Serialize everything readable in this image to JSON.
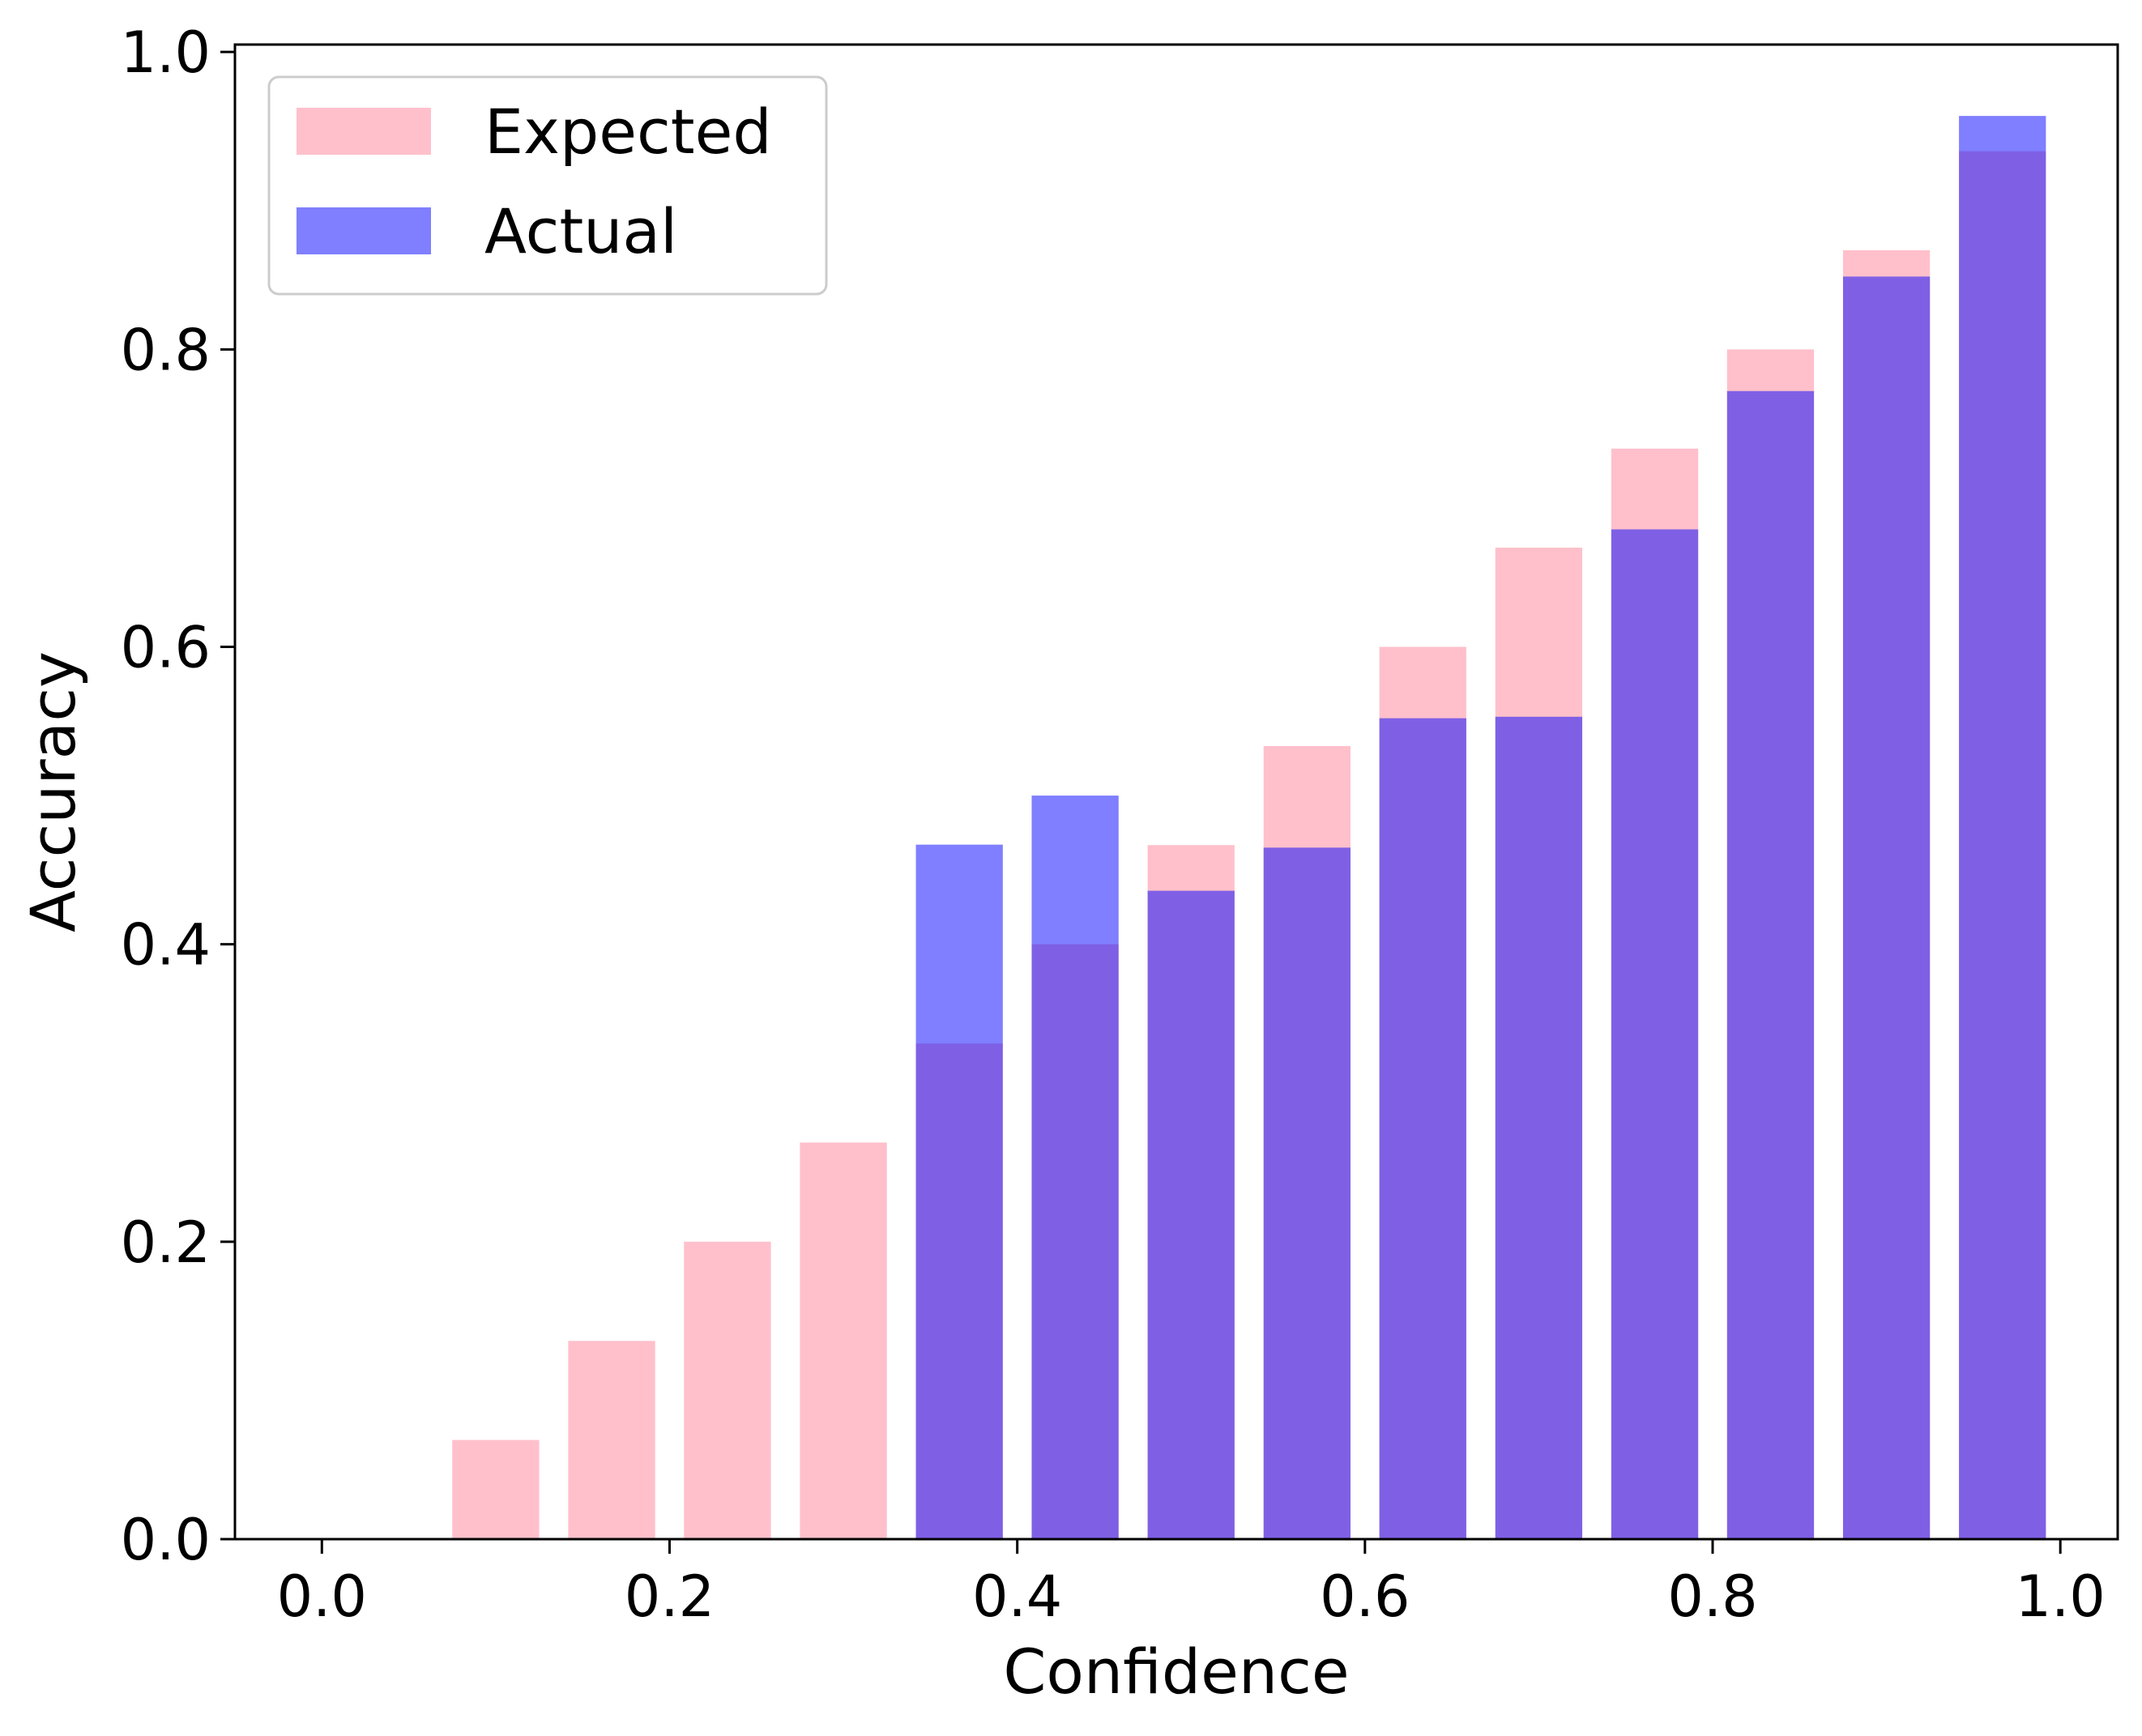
{
  "chart_data": {
    "type": "bar",
    "xlabel": "Confidence",
    "ylabel": "Accuracy",
    "xlim": [
      -0.05,
      1.033
    ],
    "ylim": [
      0,
      1.005
    ],
    "bar_width": 0.05,
    "x": [
      0.0333,
      0.1,
      0.1667,
      0.2333,
      0.3,
      0.3667,
      0.4333,
      0.5,
      0.5667,
      0.6333,
      0.7,
      0.7667,
      0.8333,
      0.9,
      0.9667
    ],
    "x_tick_labels": [
      "0.0",
      "0.2",
      "0.4",
      "0.6",
      "0.8",
      "1.0"
    ],
    "x_ticks": [
      0.0,
      0.2,
      0.4,
      0.6,
      0.8,
      1.0
    ],
    "y_tick_labels": [
      "0.0",
      "0.2",
      "0.4",
      "0.6",
      "0.8",
      "1.0"
    ],
    "y_ticks": [
      0.0,
      0.2,
      0.4,
      0.6,
      0.8,
      1.0
    ],
    "grid": false,
    "legend_position": "top-left",
    "series": [
      {
        "name": "Expected",
        "color": "#ffc0cb",
        "opacity": 1.0,
        "values": [
          0.0,
          0.0667,
          0.1333,
          0.2,
          0.2667,
          0.3333,
          0.4,
          0.4667,
          0.5333,
          0.6,
          0.6667,
          0.7333,
          0.8,
          0.8667,
          0.9333
        ]
      },
      {
        "name": "Actual",
        "color": "#0000ff",
        "opacity": 0.5,
        "values": [
          0.0,
          0.0,
          0.0,
          0.0,
          0.0,
          0.467,
          0.5,
          0.436,
          0.465,
          0.552,
          0.553,
          0.679,
          0.772,
          0.849,
          0.957
        ]
      }
    ]
  }
}
